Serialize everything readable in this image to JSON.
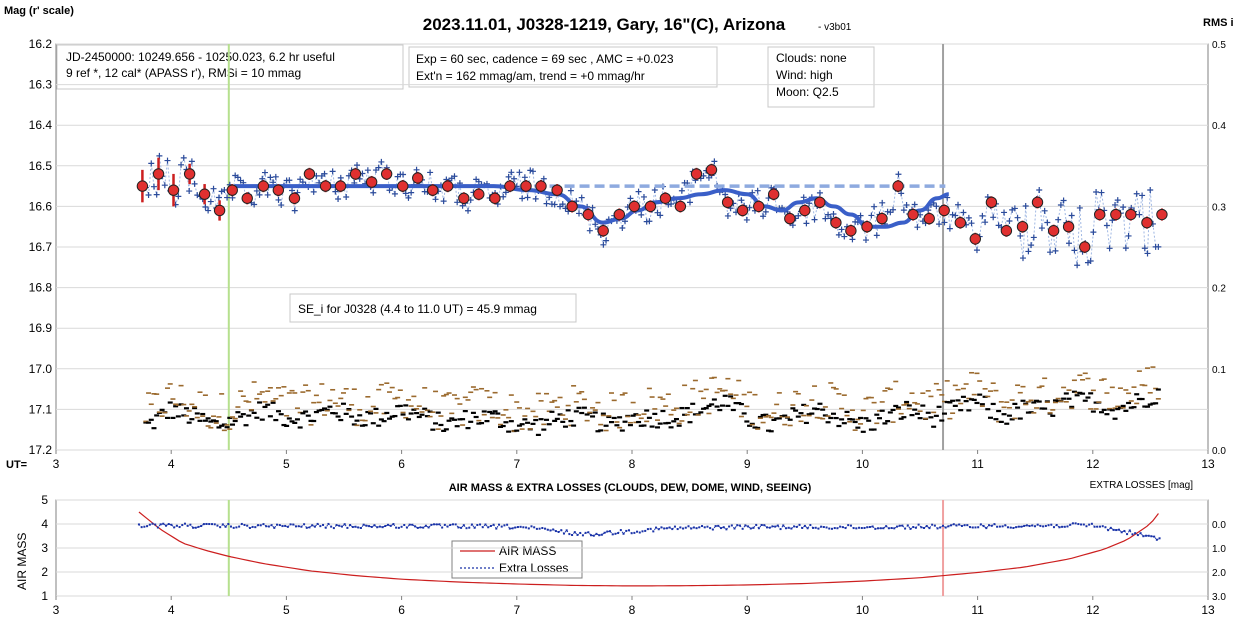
{
  "title": "2023.11.01, J0328-1219, Gary, 16\"(C), Arizona",
  "version": "- v3b01",
  "ylabel_left": "Mag (r' scale)",
  "ylabel_right": "RMS i",
  "ut_label": "UT=",
  "info_boxes": {
    "jd_line1": "JD-2450000: 10249.656 - 10250.023, 6.2 hr useful",
    "jd_line2": "9 ref *, 12 cal*  (APASS r'), RMSi = 10 mmag",
    "exp_line1": "Exp = 60 sec, cadence = 69 sec , AMC = +0.023",
    "exp_line2": "Ext'n = 162 mmag/am, trend = +0 mmag/hr",
    "sky_line1": "Clouds: none",
    "sky_line2": "Wind:   high",
    "sky_line3": "Moon:  Q2.5",
    "se_line": "SE_i for J0328 (4.4 to 11.0 UT) = 45.9 mmag"
  },
  "bottom_panel": {
    "title": "AIR MASS & EXTRA LOSSES (CLOUDS, DEW, DOME, WIND, SEEING)",
    "right_label": "EXTRA LOSSES [mag]",
    "ylabel_left": "AIR MASS",
    "legend_airmass": "AIR MASS",
    "legend_losses": "Extra Losses"
  },
  "chart_data": [
    {
      "type": "scatter",
      "panel": "top",
      "title": "2023.11.01, J0328-1219, Gary, 16\"(C), Arizona",
      "xlabel": "UT=",
      "ylabel": "Mag (r' scale)",
      "y2label": "RMS i",
      "xlim": [
        3,
        13
      ],
      "ylim": [
        17.2,
        16.2
      ],
      "y2lim": [
        0.0,
        0.5
      ],
      "x_ticks": [
        3,
        4,
        5,
        6,
        7,
        8,
        9,
        10,
        11,
        12,
        13
      ],
      "y_ticks": [
        16.2,
        16.3,
        16.4,
        16.5,
        16.6,
        16.7,
        16.8,
        16.9,
        17.0,
        17.1,
        17.2
      ],
      "y2_ticks": [
        0.5,
        0.4,
        0.3,
        0.2,
        0.1,
        0.0
      ],
      "vertical_markers": [
        {
          "x": 4.5,
          "color": "#b6e08e"
        },
        {
          "x": 10.7,
          "color": "#a0a0a0"
        }
      ],
      "colors": {
        "individual": "#2b4b9b",
        "binned": "#e03030",
        "fit": "#3a5fc8",
        "baseline": "#8eaadf",
        "rms_black": "#000000",
        "rms_brown": "#9b6a2e"
      },
      "binned": {
        "x": [
          3.75,
          3.89,
          4.02,
          4.16,
          4.29,
          4.42,
          4.53,
          4.66,
          4.8,
          4.93,
          5.07,
          5.2,
          5.34,
          5.47,
          5.6,
          5.74,
          5.87,
          6.01,
          6.14,
          6.27,
          6.4,
          6.54,
          6.67,
          6.81,
          6.94,
          7.08,
          7.21,
          7.35,
          7.48,
          7.62,
          7.75,
          7.89,
          8.02,
          8.16,
          8.29,
          8.42,
          8.56,
          8.69,
          8.83,
          8.96,
          9.1,
          9.23,
          9.37,
          9.5,
          9.63,
          9.77,
          9.9,
          10.04,
          10.17,
          10.31,
          10.44,
          10.58,
          10.71,
          10.85,
          10.98,
          11.12,
          11.25,
          11.39,
          11.52,
          11.66,
          11.79,
          11.93,
          12.06,
          12.2,
          12.33,
          12.47,
          12.6
        ],
        "values": [
          16.55,
          16.52,
          16.56,
          16.52,
          16.57,
          16.61,
          16.56,
          16.58,
          16.55,
          16.56,
          16.58,
          16.52,
          16.55,
          16.55,
          16.52,
          16.54,
          16.52,
          16.55,
          16.53,
          16.56,
          16.55,
          16.58,
          16.57,
          16.58,
          16.55,
          16.55,
          16.55,
          16.56,
          16.6,
          16.62,
          16.66,
          16.62,
          16.6,
          16.6,
          16.58,
          16.6,
          16.52,
          16.51,
          16.59,
          16.61,
          16.6,
          16.57,
          16.63,
          16.61,
          16.59,
          16.64,
          16.66,
          16.65,
          16.63,
          16.55,
          16.62,
          16.63,
          16.61,
          16.64,
          16.68,
          16.59,
          16.66,
          16.65,
          16.59,
          16.66,
          16.65,
          16.7,
          16.62,
          16.62,
          16.62,
          16.64,
          16.62
        ]
      },
      "baseline": {
        "x": [
          4.55,
          10.72
        ],
        "values": [
          16.55,
          16.55
        ]
      },
      "fit": {
        "x": [
          4.55,
          4.8,
          5.2,
          5.6,
          6.0,
          6.4,
          6.8,
          7.1,
          7.35,
          7.55,
          7.75,
          7.9,
          8.05,
          8.2,
          8.4,
          8.6,
          8.8,
          9.0,
          9.15,
          9.3,
          9.45,
          9.6,
          9.75,
          9.9,
          10.05,
          10.2,
          10.35,
          10.5,
          10.65,
          10.75
        ],
        "values": [
          16.55,
          16.55,
          16.55,
          16.55,
          16.55,
          16.55,
          16.55,
          16.56,
          16.57,
          16.6,
          16.64,
          16.63,
          16.61,
          16.59,
          16.58,
          16.57,
          16.56,
          16.57,
          16.6,
          16.61,
          16.59,
          16.58,
          16.6,
          16.62,
          16.65,
          16.65,
          16.64,
          16.61,
          16.58,
          16.57
        ]
      },
      "rms_black": {
        "x": [
          3.8,
          4.0,
          4.2,
          4.4,
          4.6,
          4.8,
          5.0,
          5.2,
          5.4,
          5.6,
          5.8,
          6.0,
          6.2,
          6.4,
          6.6,
          6.8,
          7.0,
          7.2,
          7.4,
          7.6,
          7.8,
          8.0,
          8.2,
          8.4,
          8.6,
          8.8,
          9.0,
          9.2,
          9.4,
          9.6,
          9.8,
          10.0,
          10.2,
          10.4,
          10.6,
          10.8,
          11.0,
          11.2,
          11.4,
          11.6,
          11.8,
          12.0,
          12.2,
          12.4,
          12.55
        ],
        "values": [
          0.03,
          0.05,
          0.04,
          0.03,
          0.04,
          0.05,
          0.04,
          0.04,
          0.05,
          0.04,
          0.04,
          0.05,
          0.04,
          0.03,
          0.04,
          0.04,
          0.03,
          0.03,
          0.04,
          0.04,
          0.03,
          0.04,
          0.04,
          0.04,
          0.05,
          0.06,
          0.04,
          0.03,
          0.04,
          0.05,
          0.04,
          0.03,
          0.04,
          0.05,
          0.04,
          0.05,
          0.06,
          0.04,
          0.05,
          0.05,
          0.06,
          0.06,
          0.05,
          0.06,
          0.07
        ]
      }
    },
    {
      "type": "line",
      "panel": "bottom",
      "title": "AIR MASS & EXTRA LOSSES (CLOUDS, DEW, DOME, WIND, SEEING)",
      "xlabel": "",
      "ylabel": "AIR MASS",
      "y2label": "EXTRA LOSSES [mag]",
      "xlim": [
        3,
        13
      ],
      "ylim": [
        1,
        5
      ],
      "y2lim": [
        3.0,
        -1.0
      ],
      "x_ticks": [
        3,
        4,
        5,
        6,
        7,
        8,
        9,
        10,
        11,
        12,
        13
      ],
      "y_ticks": [
        1,
        2,
        3,
        4,
        5
      ],
      "y2_labels": [
        "0.0",
        "1.0",
        "2.0",
        "3.0"
      ],
      "y2_label_values": [
        0.0,
        1.0,
        2.0,
        3.0
      ],
      "vertical_markers": [
        {
          "x": 4.5,
          "color": "#b6e08e"
        },
        {
          "x": 10.7,
          "color": "#f0a0a0"
        }
      ],
      "legend": [
        "AIR MASS",
        "Extra Losses"
      ],
      "airmass": {
        "x": [
          3.72,
          3.9,
          4.1,
          4.3,
          4.5,
          4.8,
          5.2,
          5.6,
          6.0,
          6.5,
          7.0,
          7.5,
          8.0,
          8.5,
          9.0,
          9.5,
          10.0,
          10.5,
          11.0,
          11.4,
          11.8,
          12.1,
          12.3,
          12.5,
          12.58
        ],
        "values": [
          4.5,
          3.8,
          3.2,
          2.9,
          2.65,
          2.35,
          2.05,
          1.85,
          1.7,
          1.58,
          1.5,
          1.44,
          1.42,
          1.43,
          1.46,
          1.52,
          1.62,
          1.76,
          1.98,
          2.2,
          2.55,
          2.95,
          3.35,
          4.0,
          4.5
        ]
      },
      "losses_mean": {
        "x": [
          3.72,
          4.5,
          6.0,
          7.0,
          7.6,
          8.3,
          9.0,
          10.0,
          11.0,
          12.0,
          12.3,
          12.58
        ],
        "values": [
          0.02,
          0.05,
          0.05,
          0.08,
          0.4,
          0.15,
          0.08,
          0.1,
          0.05,
          0.02,
          0.3,
          0.6
        ]
      },
      "legend_position": "bottom-center"
    }
  ]
}
